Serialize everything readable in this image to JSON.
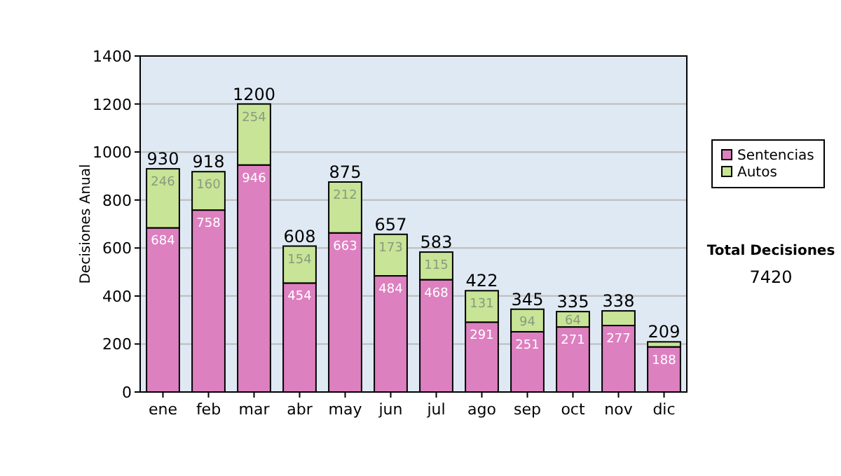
{
  "chart_data": {
    "type": "bar",
    "stacked": true,
    "ylabel": "Decisiones Anual",
    "categories": [
      "ene",
      "feb",
      "mar",
      "abr",
      "may",
      "jun",
      "jul",
      "ago",
      "sep",
      "oct",
      "nov",
      "dic"
    ],
    "series": [
      {
        "name": "Sentencias",
        "color": "#dd80c0",
        "values": [
          684,
          758,
          946,
          454,
          663,
          484,
          468,
          291,
          251,
          271,
          277,
          188
        ],
        "value_labels": [
          "684",
          "758",
          "946",
          "454",
          "663",
          "484",
          "468",
          "291",
          "251",
          "271",
          "277",
          "188"
        ]
      },
      {
        "name": "Autos",
        "color": "#c8e496",
        "values": [
          246,
          160,
          254,
          154,
          212,
          173,
          115,
          131,
          94,
          64,
          61,
          21
        ],
        "value_labels": [
          "246",
          "160",
          "254",
          "154",
          "212",
          "173",
          "115",
          "131",
          "94",
          "64",
          null,
          null
        ]
      }
    ],
    "totals": [
      "930",
      "918",
      "1200",
      "608",
      "875",
      "657",
      "583",
      "422",
      "345",
      "335",
      "338",
      "209"
    ],
    "ylim": [
      0,
      1400
    ],
    "yticks": [
      0,
      200,
      400,
      600,
      800,
      1000,
      1200,
      1400
    ],
    "grid": "y",
    "legend": "right",
    "annotations": [
      "Total Decisiones",
      "7420"
    ]
  }
}
